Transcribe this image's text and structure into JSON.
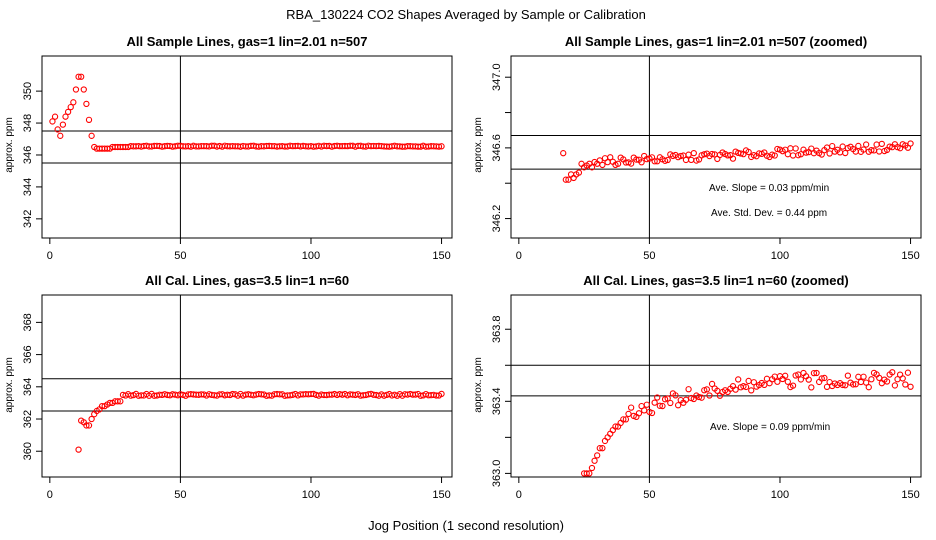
{
  "figure": {
    "title": "RBA_130224  CO2 Shapes Averaged by Sample or Calibration",
    "xlabel": "Jog Position (1 second resolution)"
  },
  "colors": {
    "points": "#ff0000",
    "axes": "#000000",
    "background": "#ffffff"
  },
  "chart_data": [
    {
      "type": "scatter",
      "title": "All Sample Lines, gas=1 lin=2.01 n=507",
      "ylabel": "approx. ppm",
      "xlim": [
        -3,
        154
      ],
      "ylim": [
        340.8,
        352.2
      ],
      "xticks": [
        0,
        50,
        100,
        150
      ],
      "yticks": [
        342,
        344,
        346,
        348,
        350
      ],
      "vline": 50,
      "hlines": [
        347.5,
        345.5
      ],
      "grid": false,
      "points": {
        "x_start": 1,
        "x_end": 150,
        "y": [
          348.1,
          348.4,
          347.6,
          347.2,
          347.9,
          348.4,
          348.7,
          349.0,
          349.3,
          350.1,
          350.9,
          350.9,
          350.1,
          349.2,
          348.2,
          347.2,
          346.5,
          346.4,
          346.4,
          346.4,
          346.4,
          346.4,
          346.4,
          346.5,
          346.5,
          346.5,
          346.5,
          346.5,
          346.5,
          346.5
        ],
        "plateau": 346.55
      }
    },
    {
      "type": "scatter",
      "title": "All Sample Lines, gas=1 lin=2.01 n=507 (zoomed)",
      "ylabel": "approx. ppm",
      "xlim": [
        -3,
        154
      ],
      "ylim": [
        346.09,
        347.12
      ],
      "xticks": [
        0,
        50,
        100,
        150
      ],
      "yticks": [
        346.2,
        346.4,
        346.6,
        346.8,
        347.0
      ],
      "ytick_labels": [
        "346.2",
        "",
        "346.6",
        "",
        "347.0"
      ],
      "vline": 50,
      "hlines": [
        346.67,
        346.48
      ],
      "grid": false,
      "points": {
        "x_start": 17,
        "x_end": 150,
        "y_head": [
          346.57,
          346.42,
          346.42,
          346.45,
          346.43,
          346.45,
          346.46,
          346.51,
          346.49,
          346.5,
          346.51,
          346.49,
          346.52
        ],
        "y_end": 346.61
      },
      "annotations": [
        "Ave. Slope =  0.03  ppm/min",
        "Ave. Std. Dev. =  0.44  ppm"
      ]
    },
    {
      "type": "scatter",
      "title": "All Cal. Lines, gas=3.5 lin=1 n=60",
      "ylabel": "approx. ppm",
      "xlim": [
        -3,
        154
      ],
      "ylim": [
        358.4,
        369.7
      ],
      "xticks": [
        0,
        50,
        100,
        150
      ],
      "yticks": [
        360,
        362,
        364,
        366,
        368
      ],
      "vline": 50,
      "hlines": [
        364.5,
        362.5
      ],
      "grid": false,
      "points": {
        "x_start": 11,
        "x_end": 150,
        "y_head": [
          360.1,
          361.9,
          361.8,
          361.6,
          361.6,
          362.0,
          362.3,
          362.5,
          362.6,
          362.8,
          362.8,
          362.9,
          363.0,
          363.0,
          363.1,
          363.1,
          363.1
        ],
        "plateau": 363.5
      }
    },
    {
      "type": "scatter",
      "title": "All Cal. Lines, gas=3.5 lin=1 n=60 (zoomed)",
      "ylabel": "approx. ppm",
      "xlim": [
        -3,
        154
      ],
      "ylim": [
        362.98,
        363.99
      ],
      "xticks": [
        0,
        50,
        100,
        150
      ],
      "yticks": [
        363.0,
        363.2,
        363.4,
        363.6,
        363.8
      ],
      "ytick_labels": [
        "363.0",
        "",
        "363.4",
        "",
        "363.8"
      ],
      "vline": 50,
      "hlines": [
        363.6,
        363.43
      ],
      "grid": false,
      "points": {
        "x_start": 25,
        "x_end": 150,
        "y_head": [
          363.0,
          363.0,
          363.0,
          363.03,
          363.07,
          363.1,
          363.14,
          363.14,
          363.18,
          363.2,
          363.22,
          363.24,
          363.26,
          363.26,
          363.28,
          363.3,
          363.3,
          363.33
        ],
        "y_end": 363.52
      },
      "annotations": [
        "Ave. Slope =  0.09  ppm/min"
      ]
    }
  ]
}
